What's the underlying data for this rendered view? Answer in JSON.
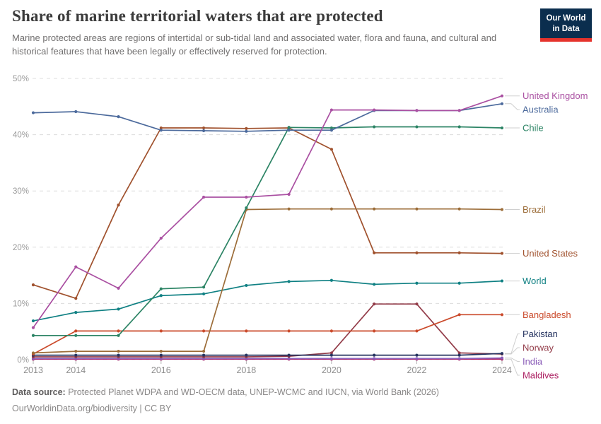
{
  "header": {
    "title": "Share of marine territorial waters that are protected",
    "subtitle": "Marine protected areas are regions of intertidal or sub-tidal land and associated water, flora and fauna, and cultural and historical features that have been legally or effectively reserved for protection."
  },
  "logo": {
    "line1": "Our World",
    "line2": "in Data",
    "bg_color": "#0b2e4e",
    "bar_color": "#e5332c"
  },
  "chart_data": {
    "type": "line",
    "title": "Share of marine territorial waters that are protected",
    "x": [
      2013,
      2014,
      2015,
      2016,
      2017,
      2018,
      2019,
      2020,
      2021,
      2022,
      2023,
      2024
    ],
    "xticks": [
      2013,
      2014,
      2016,
      2018,
      2020,
      2022,
      2024
    ],
    "ylim": [
      0,
      50
    ],
    "yticks": [
      0,
      10,
      20,
      30,
      40,
      50
    ],
    "ytick_suffix": "%",
    "grid": "horizontal-dashed",
    "legend_position": "right-inline-labels",
    "grid_color": "#dcdcdc",
    "axis_text_color": "#9a9a9a",
    "series": [
      {
        "name": "United Kingdom",
        "color": "#aa50a2",
        "values": [
          5.7,
          16.5,
          12.7,
          21.6,
          28.9,
          28.9,
          29.4,
          44.4,
          44.4,
          44.3,
          44.3,
          46.9
        ]
      },
      {
        "name": "Australia",
        "color": "#4c6a9c",
        "values": [
          43.9,
          44.1,
          43.2,
          40.8,
          40.7,
          40.6,
          40.8,
          40.8,
          44.3,
          44.3,
          44.3,
          45.5
        ]
      },
      {
        "name": "Chile",
        "color": "#2c8465",
        "values": [
          4.3,
          4.3,
          4.3,
          12.6,
          12.9,
          27.0,
          41.3,
          41.2,
          41.4,
          41.4,
          41.4,
          41.2
        ]
      },
      {
        "name": "Brazil",
        "color": "#9c6d39",
        "values": [
          1.2,
          1.5,
          1.5,
          1.5,
          1.5,
          26.7,
          26.8,
          26.8,
          26.8,
          26.8,
          26.8,
          26.7
        ]
      },
      {
        "name": "United States",
        "color": "#a0512d",
        "values": [
          13.3,
          10.9,
          27.5,
          41.2,
          41.2,
          41.1,
          41.2,
          37.4,
          19.0,
          19.0,
          19.0,
          18.9
        ]
      },
      {
        "name": "World",
        "color": "#0f8083",
        "values": [
          6.9,
          8.4,
          9.0,
          11.4,
          11.7,
          13.2,
          13.9,
          14.1,
          13.4,
          13.6,
          13.6,
          14.0
        ]
      },
      {
        "name": "Bangladesh",
        "color": "#cb4b2c",
        "values": [
          1.0,
          5.1,
          5.1,
          5.1,
          5.1,
          5.1,
          5.1,
          5.1,
          5.1,
          5.1,
          8.0,
          8.0
        ]
      },
      {
        "name": "Pakistan",
        "color": "#24325f",
        "values": [
          0.8,
          0.8,
          0.8,
          0.8,
          0.8,
          0.8,
          0.8,
          0.8,
          0.8,
          0.8,
          0.8,
          1.1
        ]
      },
      {
        "name": "Norway",
        "color": "#933c49",
        "values": [
          0.5,
          0.5,
          0.5,
          0.5,
          0.5,
          0.5,
          0.6,
          1.2,
          9.9,
          9.9,
          1.2,
          1.0
        ]
      },
      {
        "name": "India",
        "color": "#8a5cb8",
        "values": [
          0.2,
          0.2,
          0.2,
          0.2,
          0.2,
          0.2,
          0.2,
          0.2,
          0.2,
          0.2,
          0.2,
          0.3
        ]
      },
      {
        "name": "Maldives",
        "color": "#ad2364",
        "values": [
          0.1,
          0.1,
          0.1,
          0.1,
          0.1,
          0.1,
          0.1,
          0.1,
          0.1,
          0.1,
          0.1,
          0.1
        ]
      }
    ]
  },
  "footer": {
    "datasource_label": "Data source:",
    "datasource_text": " Protected Planet WDPA and WD-OECM data, UNEP-WCMC and IUCN, via World Bank (2026)",
    "link": "OurWorldinData.org/biodiversity",
    "separator": " | ",
    "license": "CC BY"
  }
}
